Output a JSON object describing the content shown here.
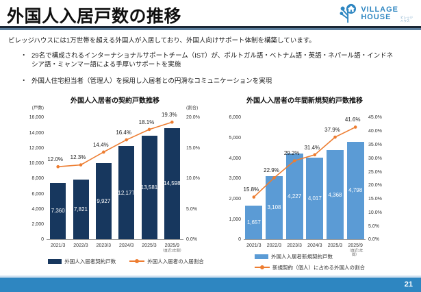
{
  "page": {
    "title": "外国人入居戸数の推移",
    "page_number": "21",
    "logo": {
      "line1": "VILLAGE",
      "line2": "HOUSE",
      "sub1": "ビレッジ",
      "sub2": "ハウス"
    }
  },
  "intro": "ビレッジハウスには1万世帯を超える外国人が入居しており、外国人向けサポート体制を構築しています。",
  "bullets": [
    "29名で構成されるインターナショナルサポートチーム（IST）が、ポルトガル語・ベトナム語・英語・ネパール語・インドネシア語・ミャンマー語による手厚いサポートを実施",
    "外国人住宅担当者（管理人）を採用し入居者との円滑なコミュニケーションを実現"
  ],
  "colors": {
    "navy_bar": "#17375E",
    "blue_bar": "#5B9BD5",
    "orange_line": "#ED7D31",
    "footer_bar": "#2E86C1",
    "logo_blue": "#2E86C1"
  },
  "chart_data": [
    {
      "type": "bar+line",
      "title": "外国人入居者の契約戸数推移",
      "left_axis_unit": "(戸数)",
      "right_axis_unit": "(割合)",
      "categories": [
        "2021/3",
        "2022/3",
        "2023/3",
        "2024/3",
        "2025/3",
        "2025/9"
      ],
      "last_category_note": "（直近1年間）",
      "bars": {
        "name": "外国人入居者契約戸数",
        "color": "#17375E",
        "values": [
          7360,
          7821,
          9927,
          12177,
          13581,
          14598
        ],
        "labels": [
          "7,360",
          "7,821",
          "9,927",
          "12,177",
          "13,581",
          "14,598"
        ]
      },
      "line": {
        "name": "外国人入居者の入居割合",
        "color": "#ED7D31",
        "values": [
          12.0,
          12.3,
          14.4,
          16.4,
          18.1,
          19.3
        ],
        "labels": [
          "12.0%",
          "12.3%",
          "14.4%",
          "16.4%",
          "18.1%",
          "19.3%"
        ]
      },
      "left_axis": {
        "max": 16000,
        "ticks": [
          "16,000",
          "14,000",
          "12,000",
          "10,000",
          "8,000",
          "6,000",
          "4,000",
          "2,000",
          "0"
        ]
      },
      "right_axis": {
        "max": 20,
        "ticks": [
          "20.0%",
          "15.0%",
          "10.0%",
          "5.0%",
          "0.0%"
        ]
      },
      "legend_position": "bottom",
      "grid": false
    },
    {
      "type": "bar+line",
      "title": "外国人入居者の年間新規契約戸数推移",
      "left_axis_unit": "",
      "right_axis_unit": "",
      "categories": [
        "2021/3",
        "2022/3",
        "2023/3",
        "2024/3",
        "2025/3",
        "2025/9"
      ],
      "last_category_note": "（直近1年間）",
      "bars": {
        "name": "外国人入居者新規契約戸数",
        "color": "#5B9BD5",
        "values": [
          1657,
          3108,
          4227,
          4017,
          4368,
          4798
        ],
        "labels": [
          "1,657",
          "3,108",
          "4,227",
          "4,017",
          "4,368",
          "4,798"
        ]
      },
      "line": {
        "name": "新規契約（個人）に占める外国人の割合",
        "color": "#ED7D31",
        "values": [
          15.8,
          22.9,
          29.2,
          31.4,
          37.9,
          41.6
        ],
        "labels": [
          "15.8%",
          "22.9%",
          "29.2%",
          "31.4%",
          "37.9%",
          "41.6%"
        ]
      },
      "left_axis": {
        "max": 6000,
        "ticks": [
          "6,000",
          "5,000",
          "4,000",
          "3,000",
          "2,000",
          "1,000",
          "0"
        ]
      },
      "right_axis": {
        "max": 45,
        "ticks": [
          "45.0%",
          "40.0%",
          "35.0%",
          "30.0%",
          "25.0%",
          "20.0%",
          "15.0%",
          "10.0%",
          "5.0%",
          "0.0%"
        ]
      },
      "legend_position": "bottom",
      "grid": false
    }
  ]
}
